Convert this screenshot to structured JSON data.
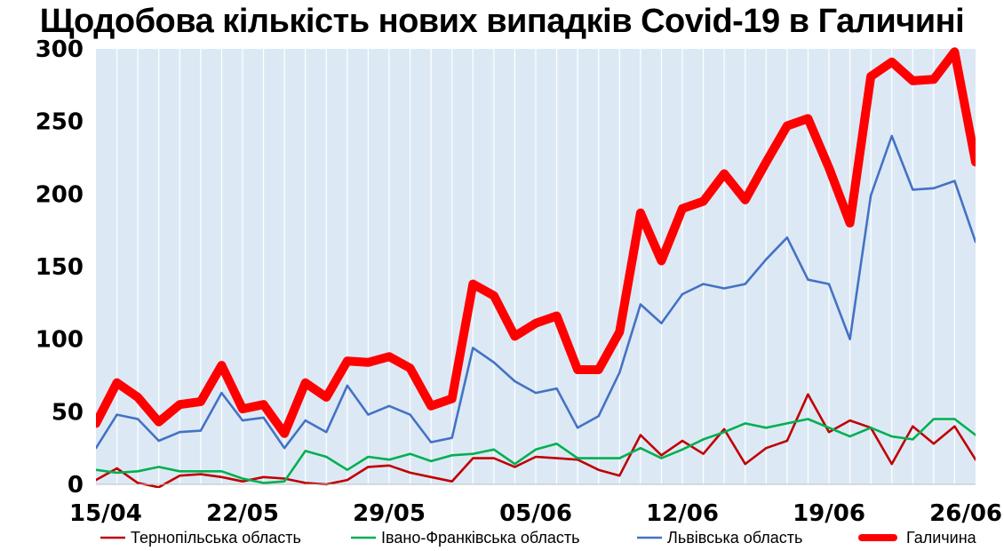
{
  "chart_data": {
    "type": "line",
    "title": "Щодобова кількість нових випадків Covid-19 в Галичині",
    "xlabel": "",
    "ylabel": "",
    "ylim": [
      0,
      300
    ],
    "yticks": [
      0,
      50,
      100,
      150,
      200,
      250,
      300
    ],
    "x_tick_labels": [
      "15/04",
      "22/05",
      "29/05",
      "05/06",
      "12/06",
      "19/06",
      "26/06"
    ],
    "x_tick_index": [
      0,
      7,
      14,
      21,
      28,
      35,
      42
    ],
    "grid": "vertical",
    "legend_position": "bottom",
    "colors": {
      "plot_bg": "#dce9f5",
      "grid": "#ffffff",
      "ternopil": "#c00000",
      "ivano": "#00b050",
      "lviv": "#4472c4",
      "galychyna": "#ff0000"
    },
    "series": [
      {
        "name": "Тернопільська область",
        "key": "ternopil",
        "values": [
          3,
          11,
          1,
          -2,
          6,
          7,
          5,
          2,
          5,
          4,
          1,
          0,
          3,
          12,
          13,
          8,
          5,
          2,
          18,
          18,
          12,
          19,
          18,
          17,
          10,
          6,
          34,
          20,
          30,
          21,
          38,
          14,
          25,
          30,
          62,
          36,
          44,
          39,
          14,
          40,
          28,
          40,
          17
        ]
      },
      {
        "name": "Івано-Франківська область",
        "key": "ivano",
        "values": [
          10,
          8,
          9,
          12,
          9,
          9,
          9,
          4,
          1,
          2,
          23,
          19,
          10,
          19,
          17,
          21,
          16,
          20,
          21,
          24,
          14,
          24,
          28,
          18,
          18,
          18,
          25,
          18,
          24,
          31,
          36,
          42,
          39,
          42,
          45,
          39,
          33,
          39,
          33,
          31,
          45,
          45,
          34
        ]
      },
      {
        "name": "Львівська область",
        "key": "lviv",
        "values": [
          25,
          48,
          45,
          30,
          36,
          37,
          63,
          44,
          46,
          25,
          44,
          36,
          68,
          48,
          54,
          48,
          29,
          32,
          94,
          84,
          71,
          63,
          66,
          39,
          47,
          77,
          124,
          111,
          131,
          138,
          135,
          138,
          155,
          170,
          141,
          138,
          100,
          199,
          240,
          203,
          204,
          209,
          167
        ]
      },
      {
        "name": "Галичина",
        "key": "galychyna",
        "values": [
          42,
          70,
          60,
          43,
          55,
          57,
          82,
          52,
          55,
          35,
          70,
          60,
          85,
          84,
          88,
          80,
          54,
          59,
          138,
          130,
          102,
          111,
          116,
          79,
          79,
          105,
          187,
          154,
          190,
          195,
          214,
          196,
          222,
          247,
          252,
          218,
          180,
          281,
          291,
          278,
          279,
          298,
          222
        ]
      }
    ]
  }
}
